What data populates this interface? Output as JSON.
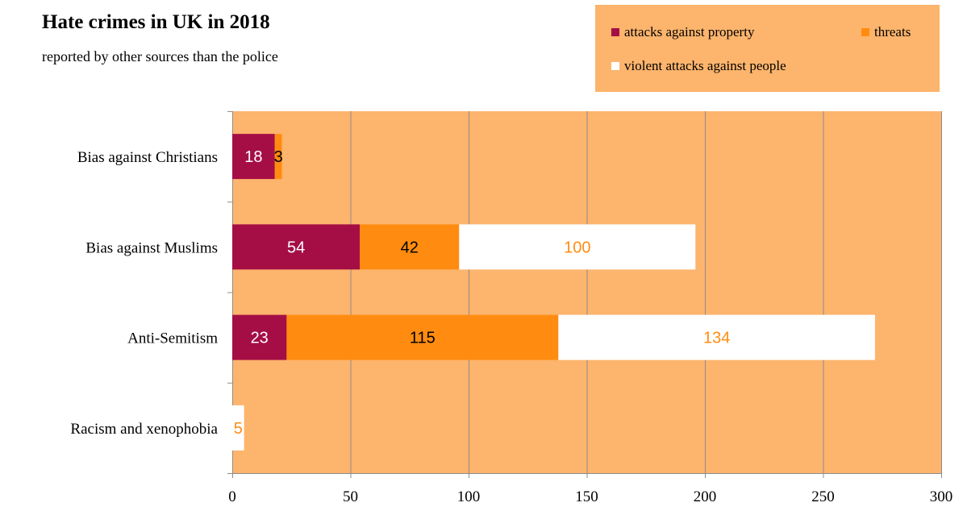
{
  "chart_data": {
    "type": "bar",
    "orientation": "horizontal",
    "stacked": true,
    "title": "Hate crimes in UK in 2018",
    "subtitle": "reported by other sources than the police",
    "categories": [
      "Bias against Christians",
      "Bias against Muslims",
      "Anti-Semitism",
      "Racism and xenophobia"
    ],
    "series": [
      {
        "name": "attacks against property",
        "color": "#a50e45",
        "label_color": "#ffffff",
        "values": [
          18,
          54,
          23,
          null
        ]
      },
      {
        "name": "threats",
        "color": "#ff8c10",
        "label_color": "#000000",
        "values": [
          3,
          42,
          115,
          null
        ]
      },
      {
        "name": "violent attacks against people",
        "color": "#ffffff",
        "label_color": "#ff8c10",
        "values": [
          null,
          100,
          134,
          5
        ]
      }
    ],
    "xlim": [
      0,
      300
    ],
    "xticks": [
      0,
      50,
      100,
      150,
      200,
      250,
      300
    ],
    "grid": true,
    "legend_position": "top-right",
    "plot_background": "#fdb46c",
    "legend_background": "#fdb46c",
    "grid_color": "#8c8c8c"
  }
}
